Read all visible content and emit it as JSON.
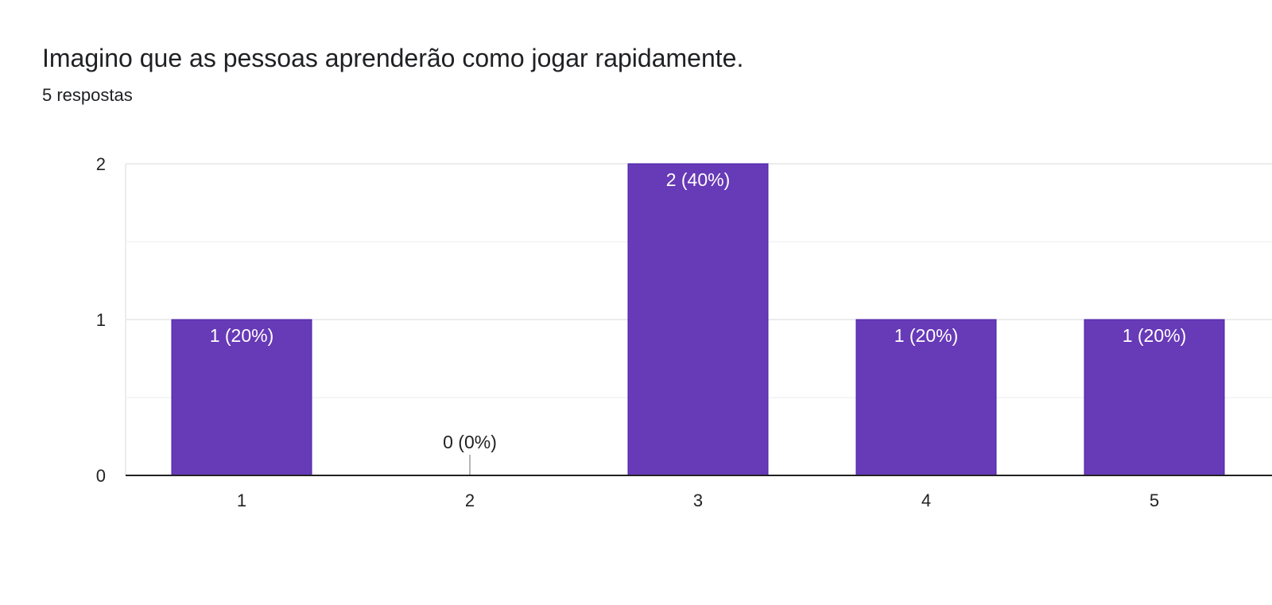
{
  "question": {
    "title": "Imagino que as pessoas aprenderão como jogar rapidamente.",
    "responses": "5 respostas"
  },
  "colors": {
    "bar": "#673ab7",
    "bar_border": "#4a1fb0",
    "axis": "#222222",
    "grid_major": "#ececec",
    "grid_minor": "#f4f4f4",
    "label_inside": "#ffffff",
    "label_outside": "#222222"
  },
  "chart_data": {
    "type": "bar",
    "categories": [
      "1",
      "2",
      "3",
      "4",
      "5"
    ],
    "values": [
      1,
      0,
      2,
      1,
      1
    ],
    "data_labels": [
      "1 (20%)",
      "0 (0%)",
      "2 (40%)",
      "1 (20%)",
      "1 (20%)"
    ],
    "yticks": [
      "0",
      "1",
      "2"
    ],
    "ylim": [
      0,
      2
    ],
    "grid": true,
    "legend": "none"
  }
}
